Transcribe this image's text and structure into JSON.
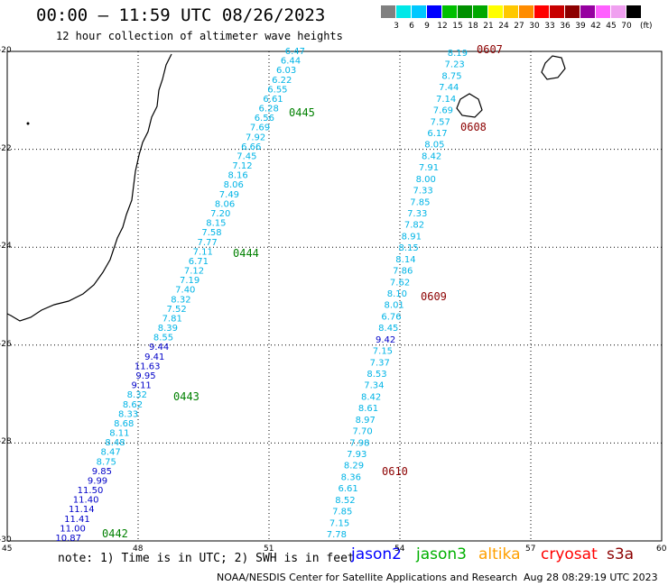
{
  "header": {
    "title": "00:00 – 11:59 UTC 08/26/2023",
    "subtitle": "12 hour collection of altimeter wave heights"
  },
  "legend": {
    "labels": [
      "3",
      "6",
      "9",
      "12",
      "15",
      "18",
      "21",
      "24",
      "27",
      "30",
      "33",
      "36",
      "39",
      "42",
      "45",
      "70"
    ],
    "unit": "(ft)",
    "colors": [
      "#808080",
      "#00e8e8",
      "#00c8ff",
      "#0000ff",
      "#00c000",
      "#009000",
      "#00a800",
      "#ffff00",
      "#ffc800",
      "#ff8c00",
      "#ff0000",
      "#c80000",
      "#8c0000",
      "#9600a0",
      "#ff60ff",
      "#f0a0f0",
      "#000000"
    ]
  },
  "axes": {
    "lon_labels": [
      "45",
      "48",
      "51",
      "54",
      "57",
      "60"
    ],
    "lat_labels": [
      "-20",
      "-22",
      "-24",
      "-26",
      "-28",
      "-30"
    ]
  },
  "tracks": [
    {
      "values": [
        "6.47",
        "6.44",
        "6.03",
        "6.22",
        "6.55",
        "6.61",
        "6.28",
        "6.56",
        "7.69",
        "7.92",
        "6.66",
        "7.45",
        "7.12",
        "8.16",
        "8.06",
        "7.49",
        "8.06",
        "7.20",
        "8.15",
        "7.58",
        "7.77",
        "7.11",
        "6.71",
        "7.12",
        "7.19",
        "7.40",
        "8.32",
        "7.52",
        "7.81",
        "8.39",
        "8.55",
        "9.44",
        "9.41",
        "11.63",
        "9.95",
        "9.11",
        "8.32",
        "8.62",
        "8.33",
        "8.68",
        "8.11",
        "8.48",
        "8.47",
        "8.75",
        "9.85",
        "9.99",
        "11.50",
        "11.40",
        "11.14",
        "11.41",
        "11.00",
        "10.87"
      ],
      "colors": [
        "c",
        "c",
        "c",
        "c",
        "c",
        "c",
        "c",
        "c",
        "c",
        "c",
        "c",
        "c",
        "c",
        "c",
        "c",
        "c",
        "c",
        "c",
        "c",
        "c",
        "c",
        "c",
        "c",
        "c",
        "c",
        "c",
        "c",
        "c",
        "c",
        "c",
        "c",
        "b",
        "b",
        "b",
        "b",
        "b",
        "c",
        "c",
        "c",
        "c",
        "c",
        "c",
        "c",
        "c",
        "b",
        "b",
        "b",
        "b",
        "b",
        "b",
        "b",
        "b"
      ],
      "times": [
        {
          "label": "0445",
          "index": 7
        },
        {
          "label": "0444",
          "index": 22
        },
        {
          "label": "0443",
          "index": 37
        },
        {
          "label": "0442",
          "index": 51
        }
      ]
    },
    {
      "values": [
        "8.19",
        "7.23",
        "8.75",
        "7.44",
        "7.14",
        "7.69",
        "7.57",
        "6.17",
        "8.05",
        "8.42",
        "7.91",
        "8.00",
        "7.33",
        "7.85",
        "7.33",
        "7.82",
        "8.91",
        "8.15",
        "8.14",
        "7.86",
        "7.62",
        "8.10",
        "8.01",
        "6.76",
        "8.45",
        "9.42",
        "7.15",
        "7.37",
        "8.53",
        "7.34",
        "8.42",
        "8.61",
        "8.97",
        "7.70",
        "7.98",
        "7.93",
        "8.29",
        "8.36",
        "6.61",
        "8.52",
        "7.85",
        "7.15",
        "7.78"
      ],
      "colors": [
        "c",
        "c",
        "c",
        "c",
        "c",
        "c",
        "c",
        "c",
        "c",
        "c",
        "c",
        "c",
        "c",
        "c",
        "c",
        "c",
        "c",
        "c",
        "c",
        "c",
        "c",
        "c",
        "c",
        "c",
        "c",
        "b",
        "c",
        "c",
        "c",
        "c",
        "c",
        "c",
        "c",
        "c",
        "c",
        "c",
        "c",
        "c",
        "c",
        "c",
        "c",
        "c",
        "c"
      ],
      "times": [
        {
          "label": "0607",
          "index": 0
        },
        {
          "label": "0608",
          "index": 7
        },
        {
          "label": "0609",
          "index": 22
        },
        {
          "label": "0610",
          "index": 37
        }
      ]
    }
  ],
  "footer": {
    "note": "note:  1) Time is in UTC;  2) SWH is in feet",
    "satellites": [
      {
        "name": "jason2",
        "color": "#0000ff"
      },
      {
        "name": "jason3",
        "color": "#00b000"
      },
      {
        "name": "altika",
        "color": "#ffa000"
      },
      {
        "name": "cryosat",
        "color": "#ff0000"
      },
      {
        "name": "s3a",
        "color": "#8c0000"
      }
    ],
    "credit": "NOAA/NESDIS Center for Satellite Applications and Research",
    "timestamp": "Aug 28 08:29:19 UTC 2023"
  }
}
